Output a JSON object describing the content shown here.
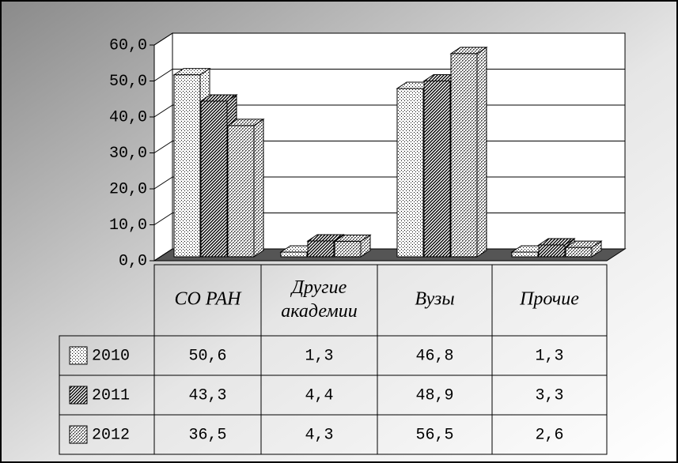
{
  "chart_data": {
    "type": "bar3d",
    "categories": [
      "СО РАН",
      "Другие академии",
      "Вузы",
      "Прочие"
    ],
    "series": [
      {
        "name": "2010",
        "color": "#000000",
        "values": [
          50.6,
          1.3,
          46.8,
          1.3
        ],
        "value_labels": [
          "50,6",
          "1,3",
          "46,8",
          "1,3"
        ]
      },
      {
        "name": "2011",
        "color": "#000000",
        "values": [
          43.3,
          4.4,
          48.9,
          3.3
        ],
        "value_labels": [
          "43,3",
          "4,4",
          "48,9",
          "3,3"
        ]
      },
      {
        "name": "2012",
        "color": "#000000",
        "values": [
          36.5,
          4.3,
          56.5,
          2.6
        ],
        "value_labels": [
          "36,5",
          "4,3",
          "56,5",
          "2,6"
        ]
      }
    ],
    "ylim": [
      0,
      60
    ],
    "yticks": [
      {
        "value": 0,
        "label": "0,0"
      },
      {
        "value": 10,
        "label": "10,0"
      },
      {
        "value": 20,
        "label": "20,0"
      },
      {
        "value": 30,
        "label": "30,0"
      },
      {
        "value": 40,
        "label": "40,0"
      },
      {
        "value": 50,
        "label": "50,0"
      },
      {
        "value": 60,
        "label": "60,0"
      }
    ],
    "grid": true,
    "data_table": true
  }
}
